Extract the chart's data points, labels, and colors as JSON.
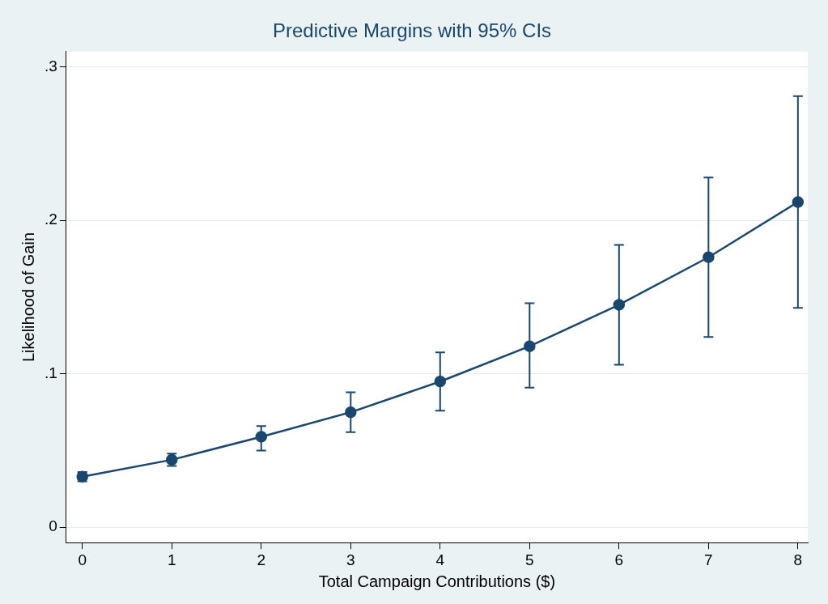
{
  "chart_data": {
    "type": "line",
    "title": "Predictive Margins with 95% CIs",
    "xlabel": "Total Campaign Contributions ($)",
    "ylabel": "Likelihood of Gain",
    "x": [
      0,
      1,
      2,
      3,
      4,
      5,
      6,
      7,
      8
    ],
    "series": [
      {
        "color": "#1a476f",
        "values": [
          0.033,
          0.044,
          0.059,
          0.075,
          0.095,
          0.118,
          0.145,
          0.176,
          0.212
        ],
        "errors": [
          [
            0.03,
            0.036
          ],
          [
            0.04,
            0.048
          ],
          [
            0.05,
            0.066
          ],
          [
            0.062,
            0.088
          ],
          [
            0.076,
            0.114
          ],
          [
            0.091,
            0.146
          ],
          [
            0.106,
            0.184
          ],
          [
            0.124,
            0.228
          ],
          [
            0.143,
            0.281
          ]
        ]
      }
    ],
    "xlim": [
      -0.18,
      8.11
    ],
    "xticks": [
      0,
      1,
      2,
      3,
      4,
      5,
      6,
      7,
      8
    ],
    "ylim": [
      -0.01,
      0.31
    ],
    "yticks": [
      0,
      {
        "value": 0.1,
        "label": ".1"
      },
      {
        "value": 0.2,
        "label": ".2"
      },
      {
        "value": 0.3,
        "label": ".3"
      }
    ],
    "grid": "y",
    "marker": "circle",
    "line_style": "solid",
    "legend": false
  }
}
